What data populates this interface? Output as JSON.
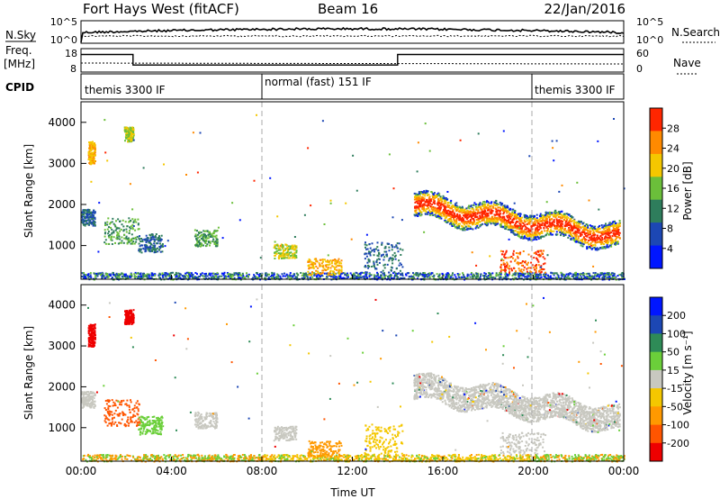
{
  "header": {
    "radar": "Fort Hays West (fitACF)",
    "beam": "Beam 16",
    "date": "22/Jan/2016"
  },
  "nsky_panel": {
    "left_label": "N.Sky",
    "left_ticks": [
      "10^5",
      "10^0"
    ],
    "right_label": "N.Search",
    "right_ticks": [
      "10^5",
      "10^0"
    ]
  },
  "freq_panel": {
    "left_label_1": "Freq.",
    "left_label_2": "[MHz]",
    "left_ticks": [
      "18",
      "8"
    ],
    "right_label": "Nave",
    "right_ticks": [
      "60",
      "0"
    ],
    "freq_segments": [
      {
        "t0": 0.0,
        "t1": 2.3,
        "mhz": 15.5
      },
      {
        "t0": 2.3,
        "t1": 14.0,
        "mhz": 11.0
      },
      {
        "t0": 14.0,
        "t1": 24.0,
        "mhz": 15.5
      }
    ]
  },
  "cpid_panel": {
    "label": "CPID",
    "modes": [
      {
        "t": 0.0,
        "label": "themis 3300 IF"
      },
      {
        "t": 8.0,
        "label": "normal (fast) 151 IF"
      },
      {
        "t": 20.0,
        "label": "themis 3300 IF"
      }
    ]
  },
  "x_axis": {
    "label": "Time UT",
    "ticks": [
      "00:00",
      "04:00",
      "08:00",
      "12:00",
      "16:00",
      "20:00",
      "00:00"
    ],
    "range_hours": [
      0,
      24
    ]
  },
  "power_panel": {
    "ylabel": "Slant Range [km]",
    "yticks": [
      "4000",
      "3000",
      "2000",
      "1000"
    ],
    "colorbar_label": "Power [dB]",
    "colorbar_ticks": [
      "28",
      "24",
      "20",
      "16",
      "12",
      "8",
      "4"
    ],
    "colorbar_colors": [
      "#0016ff",
      "#1c47b4",
      "#2e7d5c",
      "#6bbf3a",
      "#f4c700",
      "#ff8a00",
      "#ff2600"
    ]
  },
  "velocity_panel": {
    "ylabel": "Slant Range [km]",
    "yticks": [
      "4000",
      "3000",
      "2000",
      "1000"
    ],
    "colorbar_label": "Velocity [m s⁻¹]",
    "colorbar_ticks": [
      "200",
      "100",
      "50",
      "15",
      "-15",
      "-50",
      "-100",
      "-200"
    ],
    "colorbar_colors": [
      "#ee0000",
      "#ff5500",
      "#ff9900",
      "#f4c700",
      "#c8c8c0",
      "#6bcf3a",
      "#2e8b57",
      "#1c47b4",
      "#0016ff"
    ]
  },
  "chart_data": {
    "type": "heatmap",
    "title": "Fort Hays West (fitACF)",
    "xlabel": "Time UT",
    "ylabel": "Slant Range [km]",
    "xlim": [
      0,
      24
    ],
    "ylim": [
      180,
      4500
    ],
    "power_features": [
      {
        "t0": 0.0,
        "t1": 24.0,
        "r0": 190,
        "r1": 350,
        "power_db": 10,
        "note": "near range"
      },
      {
        "t0": 14.7,
        "t1": 23.8,
        "r0": 1200,
        "r1": 2200,
        "power_db": 22
      },
      {
        "t0": 0.3,
        "t1": 0.6,
        "r0": 3000,
        "r1": 3500,
        "power_db": 16
      },
      {
        "t0": 1.9,
        "t1": 2.3,
        "r0": 3600,
        "r1": 3900,
        "power_db": 12
      }
    ],
    "velocity_features": [
      {
        "t0": 14.7,
        "t1": 23.8,
        "r0": 1200,
        "r1": 2200,
        "velocity_ms": 0
      },
      {
        "t0": 0.0,
        "t1": 24.0,
        "r0": 190,
        "r1": 350,
        "velocity_ms": -50
      },
      {
        "t0": 0.3,
        "t1": 2.3,
        "r0": 1500,
        "r1": 3900,
        "velocity_ms": -200
      }
    ]
  }
}
